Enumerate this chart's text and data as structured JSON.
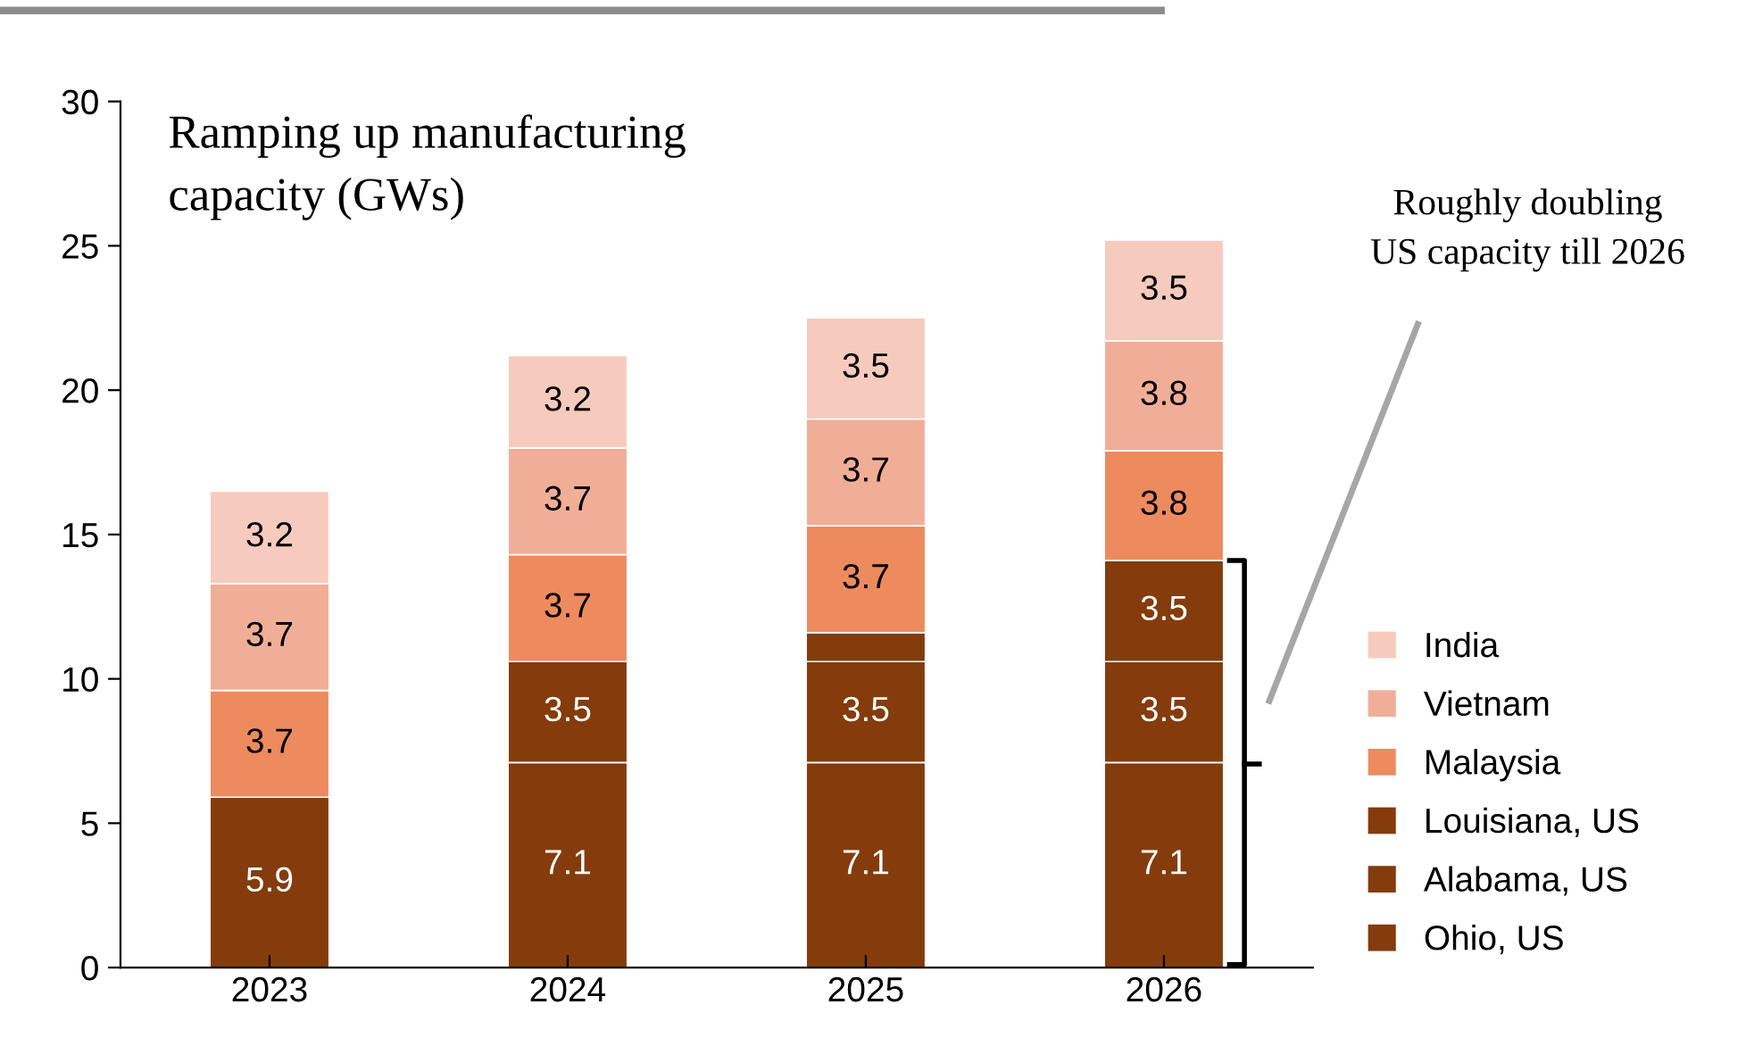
{
  "chart_data": {
    "type": "bar",
    "stacked": true,
    "title": "Ramping up manufacturing\ncapacity (GWs)",
    "categories": [
      "2023",
      "2024",
      "2025",
      "2026"
    ],
    "series": [
      {
        "name": "Ohio, US",
        "color": "#843c0c",
        "values": [
          5.9,
          7.1,
          7.1,
          7.1
        ],
        "value_labels": [
          "5.9",
          "7.1",
          "7.1",
          "7.1"
        ]
      },
      {
        "name": "Alabama, US",
        "color": "#843c0c",
        "values": [
          null,
          3.5,
          3.5,
          3.5
        ],
        "value_labels": [
          null,
          "3.5",
          "3.5",
          "3.5"
        ]
      },
      {
        "name": "Louisiana, US",
        "color": "#843c0c",
        "values": [
          null,
          null,
          1.0,
          3.5
        ],
        "value_labels": [
          null,
          null,
          null,
          "3.5"
        ]
      },
      {
        "name": "Malaysia",
        "color": "#ed8b5e",
        "values": [
          3.7,
          3.7,
          3.7,
          3.8
        ],
        "value_labels": [
          "3.7",
          "3.7",
          "3.7",
          "3.8"
        ]
      },
      {
        "name": "Vietnam",
        "color": "#f1ae97",
        "values": [
          3.7,
          3.7,
          3.7,
          3.8
        ],
        "value_labels": [
          "3.7",
          "3.7",
          "3.7",
          "3.8"
        ]
      },
      {
        "name": "India",
        "color": "#f6cbbd",
        "values": [
          3.2,
          3.2,
          3.5,
          3.5
        ],
        "value_labels": [
          "3.2",
          "3.2",
          "3.5",
          "3.5"
        ]
      }
    ],
    "ylim": [
      0,
      30
    ],
    "yticks": [
      0,
      5,
      10,
      15,
      20,
      25,
      30
    ],
    "grid": false,
    "legend": "right",
    "annotations": [
      "Roughly doubling\nUS capacity till 2026"
    ]
  }
}
